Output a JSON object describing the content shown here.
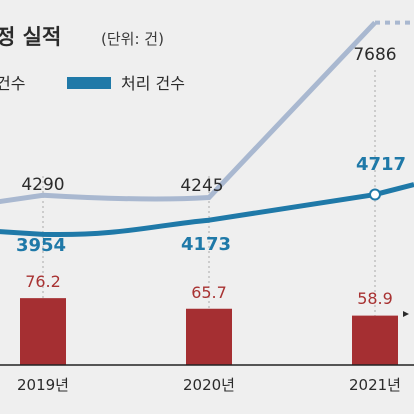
{
  "chart_data": {
    "type": "line",
    "title": "정 실적",
    "unit_note": "(단위: 건)",
    "categories": [
      "2019년",
      "2020년",
      "2021년"
    ],
    "series": [
      {
        "name": "건수",
        "kind": "line",
        "color": "#a9b8d0",
        "values": [
          4290,
          4245,
          7686
        ]
      },
      {
        "name": "처리 건수",
        "kind": "line",
        "color": "#1f79a8",
        "values": [
          3954,
          4173,
          4717
        ]
      },
      {
        "name": "",
        "kind": "bar",
        "color": "#a52f32",
        "values": [
          76.2,
          65.7,
          58.9
        ]
      }
    ],
    "legend": {
      "position": "top"
    }
  }
}
